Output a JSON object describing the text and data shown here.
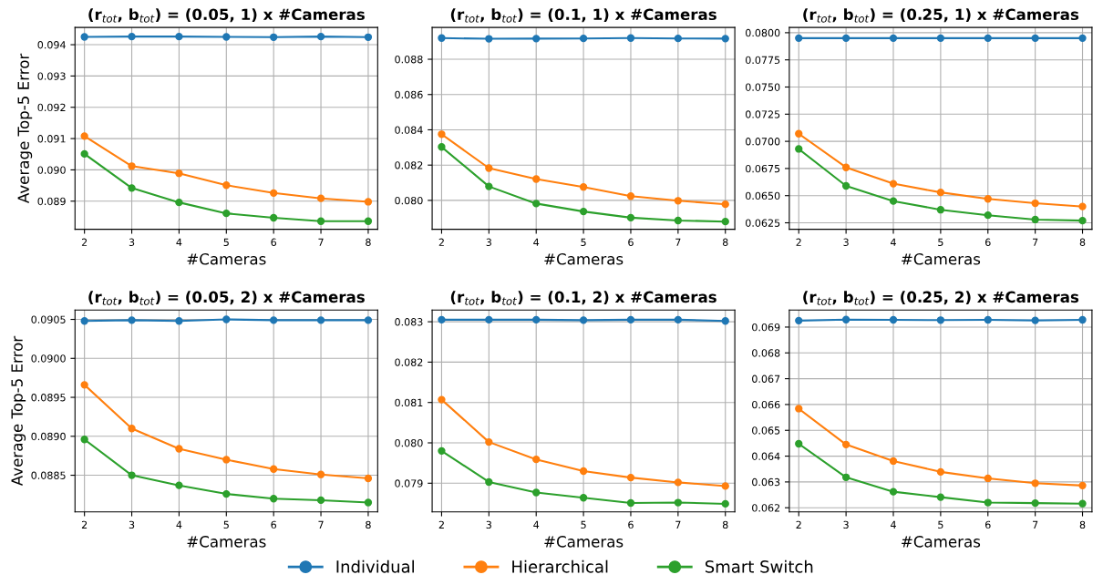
{
  "chart_data": [
    {
      "type": "line",
      "title": "(r$_{tot}$, b$_{tot}$) = (0.05, 1) x #Cameras",
      "xlabel": "#Cameras",
      "ylabel": "Average Top-5 Error",
      "x": [
        2,
        3,
        4,
        5,
        6,
        7,
        8
      ],
      "xlim": [
        1.8,
        8.2
      ],
      "xticks": [
        2,
        3,
        4,
        5,
        6,
        7,
        8
      ],
      "ylim": [
        0.0881,
        0.09455
      ],
      "yticks": [
        0.089,
        {
          "value": 0.09,
          "label": "0.090"
        },
        0.091,
        0.092,
        0.093,
        0.094
      ],
      "grid": true,
      "marker": "circle",
      "legend": "bottom",
      "series": [
        {
          "name": "Individual",
          "color": "#1f77b4",
          "values": [
            0.09425,
            0.09426,
            0.09426,
            0.09425,
            0.09424,
            0.09426,
            0.09424
          ]
        },
        {
          "name": "Hierarchical",
          "color": "#ff7f0e",
          "values": [
            0.09108,
            0.09012,
            0.08989,
            0.08951,
            0.08926,
            0.08909,
            0.08898
          ]
        },
        {
          "name": "Smart Switch",
          "color": "#2ca02c",
          "values": [
            0.09051,
            0.08942,
            0.08896,
            0.08861,
            0.08847,
            0.08836,
            0.08836
          ]
        }
      ]
    },
    {
      "type": "line",
      "title": "(r$_{tot}$, b$_{tot}$) = (0.1, 1) x #Cameras",
      "xlabel": "#Cameras",
      "x": [
        2,
        3,
        4,
        5,
        6,
        7,
        8
      ],
      "xlim": [
        1.8,
        8.2
      ],
      "xticks": [
        2,
        3,
        4,
        5,
        6,
        7,
        8
      ],
      "ylim": [
        0.07836,
        0.0898
      ],
      "yticks": [
        {
          "value": 0.08,
          "label": "0.080"
        },
        {
          "value": 0.082,
          "label": "0.082"
        },
        {
          "value": 0.084,
          "label": "0.084"
        },
        {
          "value": 0.086,
          "label": "0.086"
        },
        {
          "value": 0.088,
          "label": "0.088"
        }
      ],
      "grid": true,
      "marker": "circle",
      "series": [
        {
          "color": "#1f77b4",
          "values": [
            0.0892,
            0.08916,
            0.08917,
            0.08918,
            0.0892,
            0.08918,
            0.08917
          ]
        },
        {
          "color": "#ff7f0e",
          "values": [
            0.08375,
            0.08183,
            0.08121,
            0.08076,
            0.08024,
            0.07998,
            0.07978
          ]
        },
        {
          "color": "#2ca02c",
          "values": [
            0.08303,
            0.08079,
            0.07982,
            0.07937,
            0.07902,
            0.07886,
            0.0788
          ]
        }
      ]
    },
    {
      "type": "line",
      "title": "(r$_{tot}$, b$_{tot}$) = (0.25, 1) x #Cameras",
      "xlabel": "#Cameras",
      "x": [
        2,
        3,
        4,
        5,
        6,
        7,
        8
      ],
      "xlim": [
        1.8,
        8.2
      ],
      "xticks": [
        2,
        3,
        4,
        5,
        6,
        7,
        8
      ],
      "ylim": [
        0.0619,
        0.08048
      ],
      "yticks": [
        {
          "value": 0.0625,
          "label": "0.0625"
        },
        {
          "value": 0.065,
          "label": "0.0650"
        },
        {
          "value": 0.0675,
          "label": "0.0675"
        },
        {
          "value": 0.07,
          "label": "0.0700"
        },
        {
          "value": 0.0725,
          "label": "0.0725"
        },
        {
          "value": 0.075,
          "label": "0.0750"
        },
        {
          "value": 0.0775,
          "label": "0.0775"
        },
        {
          "value": 0.08,
          "label": "0.0800"
        }
      ],
      "grid": true,
      "marker": "circle",
      "series": [
        {
          "color": "#1f77b4",
          "values": [
            0.0795,
            0.0795,
            0.0795,
            0.0795,
            0.0795,
            0.0795,
            0.0795
          ]
        },
        {
          "color": "#ff7f0e",
          "values": [
            0.0707,
            0.0676,
            0.0661,
            0.0653,
            0.0647,
            0.0643,
            0.064
          ]
        },
        {
          "color": "#2ca02c",
          "values": [
            0.0693,
            0.0659,
            0.0645,
            0.0637,
            0.0632,
            0.0628,
            0.0627
          ]
        }
      ]
    },
    {
      "type": "line",
      "title": "(r$_{tot}$, b$_{tot}$) = (0.05, 2) x #Cameras",
      "xlabel": "#Cameras",
      "ylabel": "Average Top-5 Error",
      "x": [
        2,
        3,
        4,
        5,
        6,
        7,
        8
      ],
      "xlim": [
        1.8,
        8.2
      ],
      "xticks": [
        2,
        3,
        4,
        5,
        6,
        7,
        8
      ],
      "ylim": [
        0.08803,
        0.09062
      ],
      "yticks": [
        {
          "value": 0.0885,
          "label": "0.0885"
        },
        {
          "value": 0.089,
          "label": "0.0890"
        },
        {
          "value": 0.0895,
          "label": "0.0895"
        },
        {
          "value": 0.09,
          "label": "0.0900"
        },
        {
          "value": 0.0905,
          "label": "0.0905"
        }
      ],
      "grid": true,
      "marker": "circle",
      "series": [
        {
          "color": "#1f77b4",
          "values": [
            0.09048,
            0.09049,
            0.09048,
            0.0905,
            0.09049,
            0.09049,
            0.09049
          ]
        },
        {
          "color": "#ff7f0e",
          "values": [
            0.08966,
            0.0891,
            0.08884,
            0.0887,
            0.08858,
            0.08851,
            0.08846
          ]
        },
        {
          "color": "#2ca02c",
          "values": [
            0.08896,
            0.0885,
            0.08837,
            0.08826,
            0.0882,
            0.08818,
            0.08815
          ]
        }
      ]
    },
    {
      "type": "line",
      "title": "(r$_{tot}$, b$_{tot}$) = (0.1, 2) x #Cameras",
      "xlabel": "#Cameras",
      "x": [
        2,
        3,
        4,
        5,
        6,
        7,
        8
      ],
      "xlim": [
        1.8,
        8.2
      ],
      "xticks": [
        2,
        3,
        4,
        5,
        6,
        7,
        8
      ],
      "ylim": [
        0.07829,
        0.08329
      ],
      "yticks": [
        {
          "value": 0.079,
          "label": "0.079"
        },
        {
          "value": 0.08,
          "label": "0.080"
        },
        0.081,
        0.082,
        0.083
      ],
      "grid": true,
      "marker": "circle",
      "series": [
        {
          "color": "#1f77b4",
          "values": [
            0.08305,
            0.08305,
            0.08305,
            0.08304,
            0.08305,
            0.08305,
            0.08302
          ]
        },
        {
          "color": "#ff7f0e",
          "values": [
            0.08107,
            0.08002,
            0.07959,
            0.0793,
            0.07914,
            0.07902,
            0.07893
          ]
        },
        {
          "color": "#2ca02c",
          "values": [
            0.0798,
            0.07903,
            0.07877,
            0.07864,
            0.07851,
            0.07852,
            0.07849
          ]
        }
      ]
    },
    {
      "type": "line",
      "title": "(r$_{tot}$, b$_{tot}$) = (0.25, 2) x #Cameras",
      "xlabel": "#Cameras",
      "x": [
        2,
        3,
        4,
        5,
        6,
        7,
        8
      ],
      "xlim": [
        1.8,
        8.2
      ],
      "xticks": [
        2,
        3,
        4,
        5,
        6,
        7,
        8
      ],
      "ylim": [
        0.06184,
        0.06966
      ],
      "yticks": [
        0.062,
        0.063,
        0.064,
        0.065,
        0.066,
        0.067,
        0.068,
        0.069
      ],
      "grid": true,
      "marker": "circle",
      "series": [
        {
          "color": "#1f77b4",
          "values": [
            0.06925,
            0.06929,
            0.06928,
            0.06927,
            0.06928,
            0.06926,
            0.06928
          ]
        },
        {
          "color": "#ff7f0e",
          "values": [
            0.06584,
            0.06445,
            0.06381,
            0.06339,
            0.06314,
            0.06295,
            0.06286
          ]
        },
        {
          "color": "#2ca02c",
          "values": [
            0.06448,
            0.06318,
            0.06262,
            0.06241,
            0.0622,
            0.06218,
            0.06216
          ]
        }
      ]
    }
  ]
}
